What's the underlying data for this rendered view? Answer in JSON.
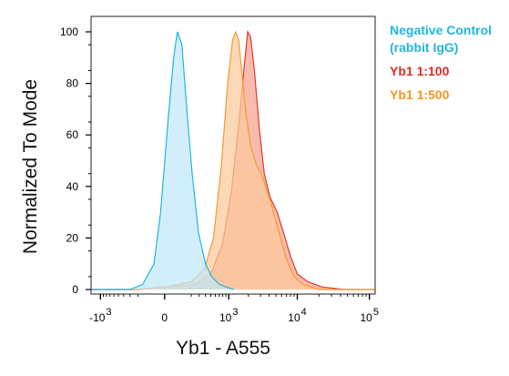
{
  "chart_data": {
    "type": "area",
    "xlabel": "Yb1 - A555",
    "ylabel": "Normalized To Mode",
    "x_scale": "biexponential",
    "y_ticks": [
      "0",
      "20",
      "40",
      "60",
      "80",
      "100"
    ],
    "ylim": [
      0,
      100
    ],
    "x_tick_labels": [
      {
        "base": "-10",
        "exp": "3",
        "value": -1000
      },
      {
        "base": "0",
        "exp": "",
        "value": 0
      },
      {
        "base": "10",
        "exp": "3",
        "value": 1000
      },
      {
        "base": "10",
        "exp": "4",
        "value": 10000
      },
      {
        "base": "10",
        "exp": "5",
        "value": 100000
      }
    ],
    "grid": false,
    "legend_position": "right",
    "series": [
      {
        "name": "Negative Control (rabbit IgG)",
        "color": "#22b5e0",
        "fill": "#bfe7f8",
        "points": [
          [
            -1400,
            0
          ],
          [
            -300,
            0
          ],
          [
            -150,
            2
          ],
          [
            -60,
            10
          ],
          [
            -20,
            30
          ],
          [
            20,
            68
          ],
          [
            50,
            90
          ],
          [
            75,
            100
          ],
          [
            110,
            95
          ],
          [
            150,
            72
          ],
          [
            210,
            45
          ],
          [
            290,
            22
          ],
          [
            400,
            10
          ],
          [
            520,
            5
          ],
          [
            700,
            2
          ],
          [
            900,
            1
          ],
          [
            1200,
            0
          ]
        ]
      },
      {
        "name": "Yb1 1:100",
        "color": "#e03a2a",
        "fill": "#f8a190",
        "points": [
          [
            -1400,
            0
          ],
          [
            -200,
            0
          ],
          [
            0,
            1
          ],
          [
            250,
            2
          ],
          [
            500,
            6
          ],
          [
            800,
            18
          ],
          [
            1100,
            38
          ],
          [
            1450,
            65
          ],
          [
            1750,
            88
          ],
          [
            1950,
            100
          ],
          [
            2150,
            98
          ],
          [
            2450,
            85
          ],
          [
            2900,
            62
          ],
          [
            3400,
            45
          ],
          [
            4100,
            36
          ],
          [
            5200,
            30
          ],
          [
            6400,
            22
          ],
          [
            8000,
            13
          ],
          [
            10000,
            6
          ],
          [
            14000,
            3
          ],
          [
            22000,
            1
          ],
          [
            45000,
            0
          ],
          [
            120000,
            0
          ]
        ]
      },
      {
        "name": "Yb1 1:500",
        "color": "#f39a2c",
        "fill": "#fbc99b",
        "points": [
          [
            -1400,
            0
          ],
          [
            -200,
            0
          ],
          [
            0,
            1
          ],
          [
            200,
            3
          ],
          [
            380,
            8
          ],
          [
            560,
            20
          ],
          [
            760,
            48
          ],
          [
            960,
            80
          ],
          [
            1150,
            97
          ],
          [
            1280,
            100
          ],
          [
            1420,
            97
          ],
          [
            1600,
            84
          ],
          [
            1850,
            67
          ],
          [
            2200,
            55
          ],
          [
            2650,
            48
          ],
          [
            3200,
            44
          ],
          [
            4200,
            34
          ],
          [
            5400,
            23
          ],
          [
            7000,
            12
          ],
          [
            9000,
            5
          ],
          [
            12000,
            2
          ],
          [
            20000,
            0
          ],
          [
            120000,
            0
          ]
        ]
      }
    ]
  },
  "legend": [
    {
      "label": "Negative Control",
      "color": "#22b5e0"
    },
    {
      "label": "(rabbit IgG)",
      "color": "#22b5e0"
    },
    {
      "label": "Yb1 1:100",
      "color": "#e0281e"
    },
    {
      "label": "Yb1 1:500",
      "color": "#f5951f"
    }
  ]
}
